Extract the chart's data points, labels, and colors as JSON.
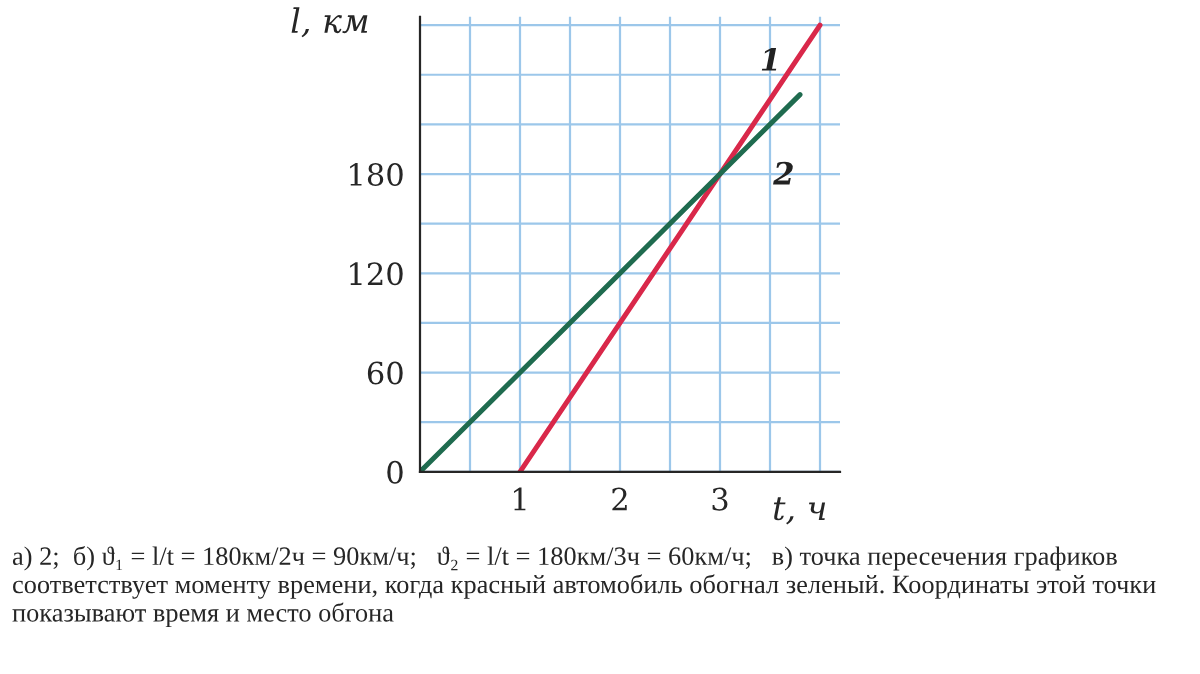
{
  "chart_data": {
    "type": "line",
    "xlabel": "t, ч",
    "ylabel": "l, км",
    "series": [
      {
        "name": "1",
        "color": "#d9284a",
        "x": [
          1,
          4
        ],
        "values": [
          0,
          270
        ]
      },
      {
        "name": "2",
        "color": "#1f6b4f",
        "x": [
          0,
          3.8
        ],
        "values": [
          0,
          228
        ]
      }
    ],
    "xlim": [
      0,
      4.2
    ],
    "ylim": [
      0,
      275
    ],
    "xticks": [
      {
        "value": 0.5,
        "label": null
      },
      1,
      {
        "value": 1.5,
        "label": null
      },
      2,
      {
        "value": 2.5,
        "label": null
      },
      3,
      {
        "value": 3.5,
        "label": null
      },
      {
        "value": 4,
        "label": null
      }
    ],
    "yticks": [
      0,
      {
        "value": 30,
        "label": null
      },
      60,
      {
        "value": 90,
        "label": null
      },
      120,
      {
        "value": 150,
        "label": null
      },
      180,
      {
        "value": 210,
        "label": null
      },
      {
        "value": 240,
        "label": null
      },
      {
        "value": 270,
        "label": null
      }
    ],
    "grid": true,
    "marker": "none",
    "line_style": "solid",
    "legend": false,
    "annotations": [
      "а) 2;  б) ϑ₁ = l/t = 180км/2ч = 90км/ч;   ϑ₂ = l/t = 180км/3ч = 60км/ч;   в) точка пересечения графиков соответствует моменту времени, когда красный автомобиль обогнал зеленый. Координаты этой точки показывают время и место обгона"
    ]
  }
}
